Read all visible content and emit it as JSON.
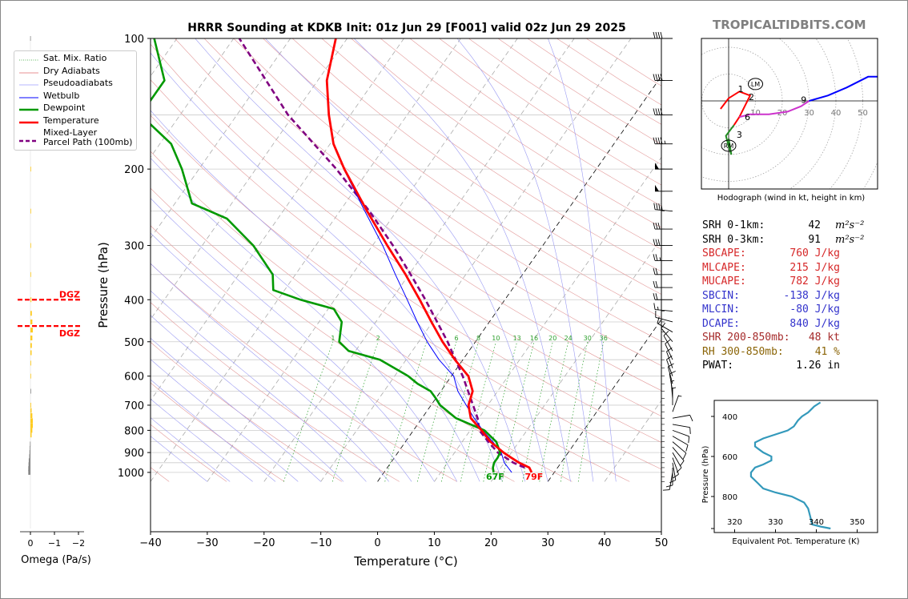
{
  "title": "HRRR Sounding at KDKB Init: 01z Jun 29 [F001] valid 02z Jun 29 2025",
  "brand": "TROPICALTIDBITS.COM",
  "chart_data": [
    {
      "type": "line",
      "chart": "skew-T log-P",
      "xlabel": "Temperature (°C)",
      "ylabel": "Pressure (hPa)",
      "xlim": [
        -40,
        50
      ],
      "ylim": [
        1050,
        100
      ],
      "x_ticks": [
        -40,
        -30,
        -20,
        -10,
        0,
        10,
        20,
        30,
        40,
        50
      ],
      "y_ticks": [
        1000,
        900,
        800,
        700,
        600,
        500,
        400,
        300,
        200,
        100
      ],
      "mixing_ratio_labels": [
        "1",
        "2",
        "6",
        "8",
        "10",
        "13",
        "16",
        "20",
        "24",
        "30",
        "36"
      ],
      "surface_labels": {
        "dewpoint": "67F",
        "temperature": "79F"
      },
      "legend": [
        {
          "name": "Sat. Mix. Ratio",
          "color": "#2ca02c",
          "style": "dotted"
        },
        {
          "name": "Dry Adiabats",
          "color": "#d62728",
          "style": "thin"
        },
        {
          "name": "Pseudoadiabats",
          "color": "#6a6aff",
          "style": "thin"
        },
        {
          "name": "Wetbulb",
          "color": "#0000ff",
          "style": "solid"
        },
        {
          "name": "Dewpoint",
          "color": "#009900",
          "style": "thick"
        },
        {
          "name": "Temperature",
          "color": "#ff0000",
          "style": "thick"
        },
        {
          "name": "Mixed-Layer\nParcel Path (100mb)",
          "color": "#800080",
          "style": "dashed"
        }
      ],
      "series": [
        {
          "name": "Temperature",
          "color": "#ff0000",
          "points": [
            [
              1000,
              26
            ],
            [
              975,
              25
            ],
            [
              950,
              22.6
            ],
            [
              925,
              20.6
            ],
            [
              900,
              18.6
            ],
            [
              850,
              15
            ],
            [
              800,
              12
            ],
            [
              750,
              8.6
            ],
            [
              700,
              6.6
            ],
            [
              650,
              5.6
            ],
            [
              600,
              3
            ],
            [
              550,
              -1.4
            ],
            [
              500,
              -5.8
            ],
            [
              450,
              -10.2
            ],
            [
              400,
              -15
            ],
            [
              350,
              -20.6
            ],
            [
              300,
              -27.4
            ],
            [
              250,
              -35.2
            ],
            [
              200,
              -44.4
            ],
            [
              175,
              -49.4
            ],
            [
              150,
              -53.8
            ],
            [
              125,
              -58.4
            ],
            [
              100,
              -62
            ]
          ]
        },
        {
          "name": "Dewpoint",
          "color": "#009900",
          "points": [
            [
              1000,
              19.3
            ],
            [
              975,
              18.6
            ],
            [
              950,
              18.2
            ],
            [
              925,
              18.2
            ],
            [
              900,
              18
            ],
            [
              850,
              16
            ],
            [
              800,
              12.5
            ],
            [
              750,
              6
            ],
            [
              700,
              1.6
            ],
            [
              675,
              0
            ],
            [
              650,
              -1.8
            ],
            [
              625,
              -5
            ],
            [
              600,
              -7.6
            ],
            [
              550,
              -14.6
            ],
            [
              525,
              -21.2
            ],
            [
              500,
              -24
            ],
            [
              450,
              -26
            ],
            [
              420,
              -29
            ],
            [
              400,
              -36
            ],
            [
              380,
              -42
            ],
            [
              350,
              -44
            ],
            [
              300,
              -51
            ],
            [
              260,
              -59
            ],
            [
              240,
              -67
            ],
            [
              200,
              -73
            ],
            [
              175,
              -78
            ],
            [
              150,
              -87
            ],
            [
              125,
              -87
            ],
            [
              100,
              -94
            ]
          ]
        },
        {
          "name": "Wetbulb",
          "color": "#0000ff",
          "points": [
            [
              1000,
              22.5
            ],
            [
              950,
              20
            ],
            [
              900,
              18.2
            ],
            [
              850,
              15.4
            ],
            [
              800,
              12.2
            ],
            [
              750,
              9.2
            ],
            [
              700,
              6.2
            ],
            [
              650,
              3
            ],
            [
              600,
              0.4
            ],
            [
              550,
              -4.2
            ],
            [
              500,
              -8.5
            ],
            [
              450,
              -12.7
            ],
            [
              400,
              -17.2
            ],
            [
              350,
              -22.4
            ],
            [
              300,
              -28.2
            ],
            [
              250,
              -35.6
            ],
            [
              200,
              -44.5
            ]
          ]
        },
        {
          "name": "Mixed-Layer Parcel Path (100mb)",
          "color": "#800080",
          "points": [
            [
              975,
              24.2
            ],
            [
              950,
              21.6
            ],
            [
              900,
              17.6
            ],
            [
              850,
              14.6
            ],
            [
              800,
              11.6
            ],
            [
              750,
              9.8
            ],
            [
              700,
              7.4
            ],
            [
              650,
              4.8
            ],
            [
              600,
              2
            ],
            [
              550,
              -1.3
            ],
            [
              500,
              -4.9
            ],
            [
              450,
              -9.2
            ],
            [
              400,
              -14
            ],
            [
              350,
              -19.7
            ],
            [
              300,
              -26.4
            ],
            [
              250,
              -34.8
            ],
            [
              200,
              -45.8
            ],
            [
              150,
              -61
            ],
            [
              100,
              -79
            ]
          ]
        }
      ],
      "annotations": [
        "DGZ",
        "DGZ"
      ],
      "dgz_levels_hpa": [
        400,
        460
      ]
    },
    {
      "type": "line",
      "chart": "hodograph",
      "caption": "Hodograph (wind in kt, height in km)",
      "ring_labels": [
        "10",
        "20",
        "30",
        "40",
        "50"
      ],
      "markers": [
        "LM",
        "RM"
      ],
      "height_labels": [
        "1",
        "2",
        "3",
        "6",
        "9"
      ],
      "segments": [
        {
          "color": "#ff0000",
          "points": [
            [
              -3,
              -3
            ],
            [
              0,
              1
            ],
            [
              4,
              3.5
            ],
            [
              8,
              2
            ],
            [
              6,
              -2
            ],
            [
              4,
              -6
            ],
            [
              2,
              -9
            ]
          ]
        },
        {
          "color": "#228b22",
          "points": [
            [
              2,
              -9
            ],
            [
              -1,
              -13
            ],
            [
              0,
              -17
            ],
            [
              1,
              -20
            ],
            [
              0,
              -14
            ]
          ]
        },
        {
          "color": "#cc33cc",
          "points": [
            [
              4,
              -6
            ],
            [
              8,
              -5
            ],
            [
              15,
              -5
            ],
            [
              22,
              -4
            ],
            [
              27,
              -2
            ],
            [
              30,
              0
            ]
          ]
        },
        {
          "color": "#0000ff",
          "points": [
            [
              30,
              0
            ],
            [
              37,
              2
            ],
            [
              44,
              5
            ],
            [
              52,
              9
            ],
            [
              56,
              9
            ]
          ]
        }
      ]
    },
    {
      "type": "line",
      "chart": "equivalent potential temperature profile",
      "xlabel": "Equivalent Pot. Temperature (K)",
      "ylabel": "Pressure (hPa)",
      "xlim": [
        315,
        355
      ],
      "ylim": [
        980,
        320
      ],
      "x_ticks": [
        320,
        330,
        340,
        350
      ],
      "y_ticks": [
        400,
        600,
        800
      ],
      "series": [
        {
          "name": "theta-e",
          "color": "#3399bb",
          "points": [
            [
              343.5,
              960
            ],
            [
              341,
              950
            ],
            [
              339,
              940
            ],
            [
              338.5,
              900
            ],
            [
              338,
              860
            ],
            [
              337,
              830
            ],
            [
              334,
              800
            ],
            [
              330,
              780
            ],
            [
              327,
              760
            ],
            [
              325.5,
              730
            ],
            [
              324,
              700
            ],
            [
              324,
              680
            ],
            [
              325,
              655
            ],
            [
              327,
              640
            ],
            [
              329,
              620
            ],
            [
              329,
              600
            ],
            [
              327,
              580
            ],
            [
              326,
              565
            ],
            [
              325,
              550
            ],
            [
              325,
              530
            ],
            [
              327,
              510
            ],
            [
              330,
              490
            ],
            [
              333,
              470
            ],
            [
              334.5,
              450
            ],
            [
              335.5,
              420
            ],
            [
              336.5,
              400
            ],
            [
              338,
              380
            ],
            [
              339.5,
              350
            ],
            [
              341,
              330
            ]
          ]
        }
      ]
    },
    {
      "type": "bar",
      "chart": "omega profile",
      "xlabel": "Omega (Pa/s)",
      "x_ticks": [
        "0",
        "−1",
        "−2"
      ],
      "points_hpa_value": [
        [
          1000,
          0.09
        ],
        [
          980,
          0.09
        ],
        [
          960,
          0.08
        ],
        [
          940,
          0.07
        ],
        [
          920,
          0.05
        ],
        [
          900,
          0.04
        ],
        [
          880,
          0.03
        ],
        [
          860,
          0.02
        ],
        [
          820,
          -0.05
        ],
        [
          800,
          -0.08
        ],
        [
          780,
          -0.1
        ],
        [
          760,
          -0.1
        ],
        [
          740,
          -0.08
        ],
        [
          720,
          -0.05
        ],
        [
          700,
          -0.03
        ],
        [
          650,
          0
        ],
        [
          600,
          -0.01
        ],
        [
          560,
          -0.03
        ],
        [
          530,
          -0.05
        ],
        [
          510,
          -0.06
        ],
        [
          490,
          -0.08
        ],
        [
          470,
          -0.1
        ],
        [
          450,
          -0.08
        ],
        [
          430,
          -0.06
        ],
        [
          400,
          -0.04
        ],
        [
          350,
          -0.02
        ],
        [
          300,
          -0.02
        ],
        [
          250,
          -0.02
        ],
        [
          200,
          -0.02
        ],
        [
          150,
          0.02
        ],
        [
          125,
          0.01
        ],
        [
          100,
          0.01
        ]
      ]
    }
  ],
  "stats": [
    {
      "label": "SRH 0-1km:",
      "value": "42",
      "unit": "m²s⁻²",
      "color": "#000000"
    },
    {
      "label": "SRH 0-3km:",
      "value": "91",
      "unit": "m²s⁻²",
      "color": "#000000"
    },
    {
      "label": "SBCAPE:",
      "value": "760 J/kg",
      "unit": "",
      "color": "#d62728"
    },
    {
      "label": "MLCAPE:",
      "value": "215 J/kg",
      "unit": "",
      "color": "#d62728"
    },
    {
      "label": "MUCAPE:",
      "value": "782 J/kg",
      "unit": "",
      "color": "#d62728"
    },
    {
      "label": "SBCIN:",
      "value": "-138 J/kg",
      "unit": "",
      "color": "#3333cc"
    },
    {
      "label": "MLCIN:",
      "value": "-80 J/kg",
      "unit": "",
      "color": "#3333cc"
    },
    {
      "label": "DCAPE:",
      "value": "840 J/kg",
      "unit": "",
      "color": "#3333cc"
    },
    {
      "label": "SHR 200-850mb:",
      "value": "48 kt",
      "unit": "",
      "color": "#a52a2a"
    },
    {
      "label": "RH 300-850mb:",
      "value": "41 %",
      "unit": "",
      "color": "#8b6508"
    },
    {
      "label": "PWAT:",
      "value": "1.26 in",
      "unit": "",
      "color": "#000000"
    }
  ],
  "wind_barbs": [
    {
      "p": 100,
      "dir": 270,
      "spd": 40
    },
    {
      "p": 125,
      "dir": 270,
      "spd": 40
    },
    {
      "p": 150,
      "dir": 270,
      "spd": 40
    },
    {
      "p": 175,
      "dir": 270,
      "spd": 45
    },
    {
      "p": 200,
      "dir": 270,
      "spd": 50
    },
    {
      "p": 225,
      "dir": 270,
      "spd": 50
    },
    {
      "p": 250,
      "dir": 275,
      "spd": 40
    },
    {
      "p": 275,
      "dir": 270,
      "spd": 30
    },
    {
      "p": 300,
      "dir": 270,
      "spd": 30
    },
    {
      "p": 325,
      "dir": 270,
      "spd": 25
    },
    {
      "p": 350,
      "dir": 270,
      "spd": 20
    },
    {
      "p": 375,
      "dir": 270,
      "spd": 20
    },
    {
      "p": 400,
      "dir": 270,
      "spd": 20
    },
    {
      "p": 425,
      "dir": 275,
      "spd": 15
    },
    {
      "p": 450,
      "dir": 285,
      "spd": 10
    },
    {
      "p": 475,
      "dir": 300,
      "spd": 10
    },
    {
      "p": 500,
      "dir": 320,
      "spd": 10
    },
    {
      "p": 525,
      "dir": 330,
      "spd": 10
    },
    {
      "p": 550,
      "dir": 335,
      "spd": 10
    },
    {
      "p": 575,
      "dir": 340,
      "spd": 10
    },
    {
      "p": 600,
      "dir": 340,
      "spd": 10
    },
    {
      "p": 625,
      "dir": 345,
      "spd": 10
    },
    {
      "p": 650,
      "dir": 350,
      "spd": 10
    },
    {
      "p": 675,
      "dir": 355,
      "spd": 5
    },
    {
      "p": 700,
      "dir": 0,
      "spd": 5
    },
    {
      "p": 725,
      "dir": 20,
      "spd": 5
    },
    {
      "p": 750,
      "dir": 80,
      "spd": 10
    },
    {
      "p": 775,
      "dir": 100,
      "spd": 10
    },
    {
      "p": 800,
      "dir": 110,
      "spd": 10
    },
    {
      "p": 825,
      "dir": 120,
      "spd": 10
    },
    {
      "p": 850,
      "dir": 130,
      "spd": 10
    },
    {
      "p": 875,
      "dir": 140,
      "spd": 10
    },
    {
      "p": 900,
      "dir": 150,
      "spd": 10
    },
    {
      "p": 925,
      "dir": 160,
      "spd": 10
    },
    {
      "p": 950,
      "dir": 170,
      "spd": 10
    },
    {
      "p": 975,
      "dir": 180,
      "spd": 10
    },
    {
      "p": 1000,
      "dir": 190,
      "spd": 10
    }
  ]
}
